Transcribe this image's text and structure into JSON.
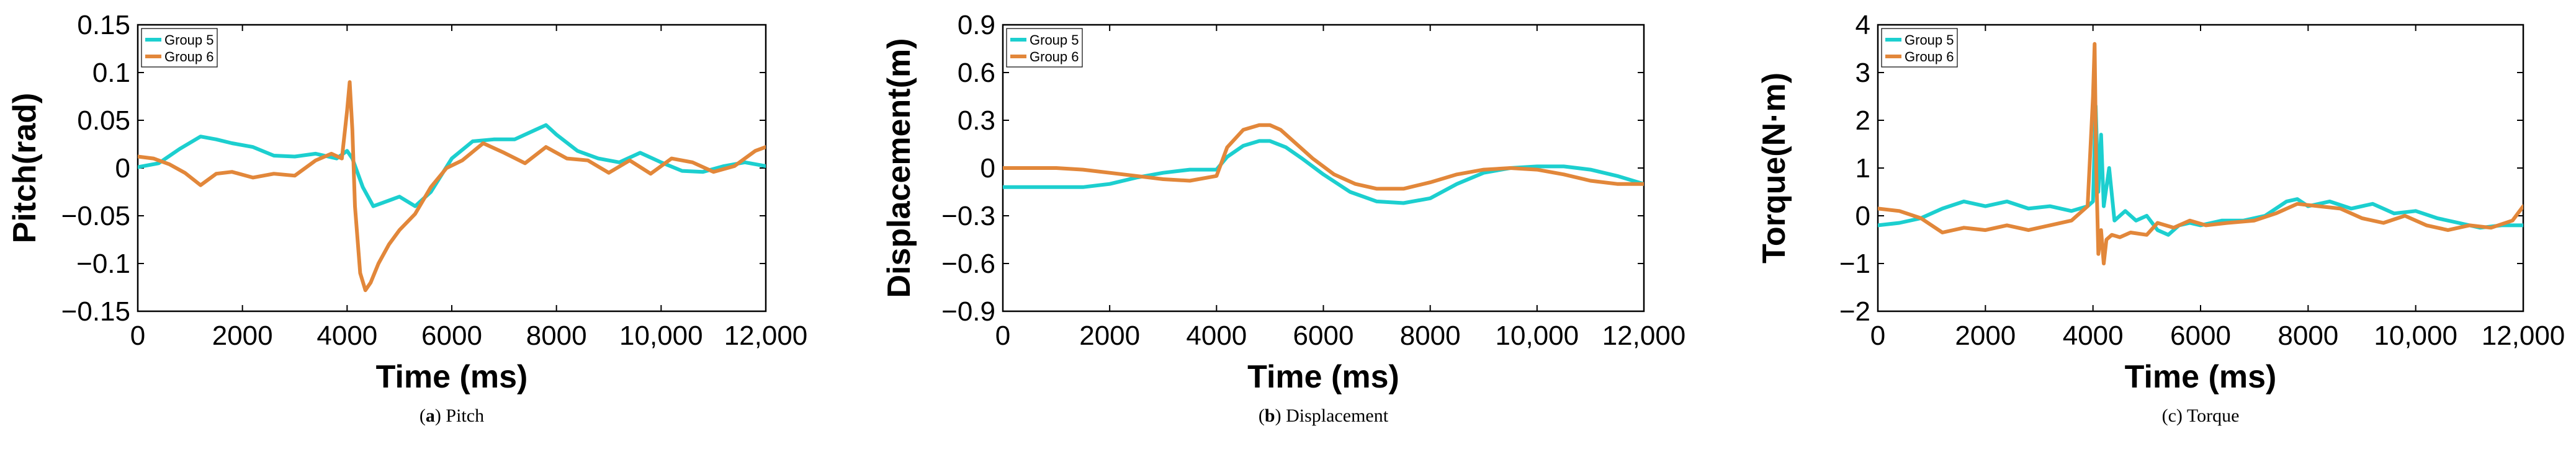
{
  "colors": {
    "group5": "#1ccfcf",
    "group6": "#e2873a"
  },
  "chart_data": [
    {
      "type": "line",
      "caption_letter": "a",
      "caption_text": "Pitch",
      "caption_bold": true,
      "xlabel": "Time (ms)",
      "ylabel": "Pitch(rad)",
      "xlim": [
        0,
        12000
      ],
      "ylim": [
        -0.15,
        0.15
      ],
      "xticks": [
        0,
        2000,
        4000,
        6000,
        8000,
        10000,
        12000
      ],
      "xtick_labels": [
        "0",
        "2000",
        "4000",
        "6000",
        "8000",
        "10,000",
        "12,000"
      ],
      "yticks": [
        0.15,
        0.1,
        0.05,
        0,
        -0.05,
        -0.1,
        -0.15
      ],
      "ytick_labels": [
        "0.15",
        "0.1",
        "0.05",
        "0",
        "−0.05",
        "−0.1",
        "−0.15"
      ],
      "legend": [
        "Group 5",
        "Group 6"
      ],
      "series": [
        {
          "name": "Group 5",
          "x": [
            0,
            400,
            800,
            1200,
            1500,
            1800,
            2200,
            2600,
            3000,
            3400,
            3800,
            4000,
            4100,
            4300,
            4500,
            4700,
            5000,
            5300,
            5600,
            6000,
            6400,
            6800,
            7200,
            7600,
            7800,
            8000,
            8400,
            8800,
            9200,
            9600,
            10000,
            10400,
            10800,
            11200,
            11600,
            12000
          ],
          "y": [
            0.001,
            0.005,
            0.02,
            0.033,
            0.03,
            0.026,
            0.022,
            0.013,
            0.012,
            0.015,
            0.01,
            0.018,
            0.01,
            -0.02,
            -0.04,
            -0.036,
            -0.03,
            -0.04,
            -0.025,
            0.01,
            0.028,
            0.03,
            0.03,
            0.04,
            0.045,
            0.035,
            0.018,
            0.01,
            0.006,
            0.016,
            0.006,
            -0.003,
            -0.004,
            0.002,
            0.006,
            0.002
          ]
        },
        {
          "name": "Group 6",
          "x": [
            0,
            300,
            600,
            900,
            1200,
            1500,
            1800,
            2200,
            2600,
            3000,
            3400,
            3700,
            3900,
            4000,
            4050,
            4100,
            4150,
            4250,
            4350,
            4450,
            4600,
            4800,
            5000,
            5300,
            5600,
            5900,
            6200,
            6600,
            7000,
            7400,
            7800,
            8200,
            8600,
            9000,
            9400,
            9800,
            10200,
            10600,
            11000,
            11400,
            11800,
            12000
          ],
          "y": [
            0.012,
            0.01,
            0.004,
            -0.005,
            -0.018,
            -0.006,
            -0.004,
            -0.01,
            -0.006,
            -0.008,
            0.008,
            0.015,
            0.01,
            0.06,
            0.09,
            0.04,
            -0.04,
            -0.11,
            -0.128,
            -0.12,
            -0.1,
            -0.08,
            -0.065,
            -0.048,
            -0.02,
            0.0,
            0.008,
            0.026,
            0.016,
            0.005,
            0.022,
            0.01,
            0.008,
            -0.005,
            0.008,
            -0.006,
            0.01,
            0.006,
            -0.004,
            0.002,
            0.018,
            0.022
          ]
        }
      ]
    },
    {
      "type": "line",
      "caption_letter": "b",
      "caption_text": "Displacement",
      "caption_bold": true,
      "xlabel": "Time (ms)",
      "ylabel": "Displacement(m)",
      "xlim": [
        0,
        12000
      ],
      "ylim": [
        -0.9,
        0.9
      ],
      "xticks": [
        0,
        2000,
        4000,
        6000,
        8000,
        10000,
        12000
      ],
      "xtick_labels": [
        "0",
        "2000",
        "4000",
        "6000",
        "8000",
        "10,000",
        "12,000"
      ],
      "yticks": [
        0.9,
        0.6,
        0.3,
        0,
        -0.3,
        -0.6,
        -0.9
      ],
      "ytick_labels": [
        "0.9",
        "0.6",
        "0.3",
        "0",
        "−0.3",
        "−0.6",
        "−0.9"
      ],
      "legend": [
        "Group 5",
        "Group 6"
      ],
      "series": [
        {
          "name": "Group 5",
          "x": [
            0,
            1000,
            1500,
            2000,
            2500,
            3000,
            3500,
            4000,
            4200,
            4500,
            4800,
            5000,
            5300,
            5600,
            6000,
            6500,
            7000,
            7500,
            8000,
            8500,
            9000,
            9500,
            10000,
            10500,
            11000,
            11500,
            12000
          ],
          "y": [
            -0.12,
            -0.12,
            -0.12,
            -0.1,
            -0.06,
            -0.03,
            -0.01,
            -0.01,
            0.07,
            0.14,
            0.17,
            0.17,
            0.13,
            0.06,
            -0.04,
            -0.15,
            -0.21,
            -0.22,
            -0.19,
            -0.1,
            -0.03,
            0.0,
            0.01,
            0.01,
            -0.01,
            -0.05,
            -0.1
          ]
        },
        {
          "name": "Group 6",
          "x": [
            0,
            500,
            1000,
            1500,
            2000,
            2500,
            3000,
            3500,
            4000,
            4200,
            4500,
            4800,
            5000,
            5200,
            5500,
            5800,
            6200,
            6600,
            7000,
            7500,
            8000,
            8500,
            9000,
            9500,
            10000,
            10500,
            11000,
            11500,
            12000
          ],
          "y": [
            0.0,
            0.0,
            0.0,
            -0.01,
            -0.03,
            -0.05,
            -0.07,
            -0.08,
            -0.05,
            0.13,
            0.24,
            0.27,
            0.27,
            0.24,
            0.15,
            0.06,
            -0.04,
            -0.1,
            -0.13,
            -0.13,
            -0.09,
            -0.04,
            -0.01,
            0.0,
            -0.01,
            -0.04,
            -0.08,
            -0.1,
            -0.1
          ]
        }
      ]
    },
    {
      "type": "line",
      "caption_letter": "",
      "caption_text": "(c) Torque",
      "caption_bold": false,
      "xlabel": "Time (ms)",
      "ylabel": "Torque(N·m)",
      "xlim": [
        0,
        12000
      ],
      "ylim": [
        -2,
        4
      ],
      "xticks": [
        0,
        2000,
        4000,
        6000,
        8000,
        10000,
        12000
      ],
      "xtick_labels": [
        "0",
        "2000",
        "4000",
        "6000",
        "8000",
        "10,000",
        "12,000"
      ],
      "yticks": [
        4,
        3,
        2,
        1,
        0,
        -1,
        -2
      ],
      "ytick_labels": [
        "4",
        "3",
        "2",
        "1",
        "0",
        "−1",
        "−2"
      ],
      "legend": [
        "Group 5",
        "Group 6"
      ],
      "series": [
        {
          "name": "Group 5",
          "x": [
            0,
            400,
            800,
            1200,
            1600,
            2000,
            2400,
            2800,
            3200,
            3600,
            3900,
            4000,
            4050,
            4100,
            4150,
            4200,
            4300,
            4400,
            4600,
            4800,
            5000,
            5200,
            5400,
            5600,
            5800,
            6000,
            6400,
            6800,
            7200,
            7600,
            7800,
            8000,
            8400,
            8800,
            9200,
            9600,
            10000,
            10400,
            10800,
            11200,
            11600,
            12000
          ],
          "y": [
            -0.2,
            -0.15,
            -0.05,
            0.15,
            0.3,
            0.2,
            0.3,
            0.15,
            0.2,
            0.1,
            0.2,
            0.3,
            2.3,
            0.5,
            1.7,
            0.2,
            1.0,
            -0.1,
            0.1,
            -0.1,
            0.0,
            -0.3,
            -0.4,
            -0.2,
            -0.15,
            -0.2,
            -0.1,
            -0.1,
            0.0,
            0.3,
            0.35,
            0.2,
            0.3,
            0.15,
            0.25,
            0.05,
            0.1,
            -0.05,
            -0.15,
            -0.25,
            -0.2,
            -0.2
          ]
        },
        {
          "name": "Group 6",
          "x": [
            0,
            400,
            800,
            1200,
            1600,
            2000,
            2400,
            2800,
            3200,
            3600,
            3900,
            4000,
            4030,
            4060,
            4100,
            4150,
            4200,
            4250,
            4350,
            4500,
            4700,
            5000,
            5200,
            5500,
            5800,
            6100,
            6500,
            7000,
            7400,
            7800,
            8200,
            8600,
            9000,
            9400,
            9800,
            10200,
            10600,
            11000,
            11400,
            11800,
            12000
          ],
          "y": [
            0.15,
            0.1,
            -0.05,
            -0.35,
            -0.25,
            -0.3,
            -0.2,
            -0.3,
            -0.2,
            -0.1,
            0.2,
            2.5,
            3.6,
            1.0,
            -0.8,
            -0.3,
            -1.0,
            -0.5,
            -0.4,
            -0.45,
            -0.35,
            -0.4,
            -0.15,
            -0.25,
            -0.1,
            -0.2,
            -0.15,
            -0.1,
            0.05,
            0.25,
            0.2,
            0.15,
            -0.05,
            -0.15,
            0.0,
            -0.2,
            -0.3,
            -0.2,
            -0.25,
            -0.1,
            0.2
          ]
        }
      ]
    }
  ]
}
